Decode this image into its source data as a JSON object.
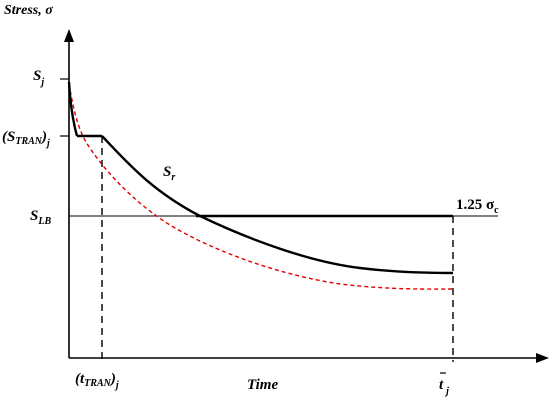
{
  "axes": {
    "y_title": "Stress, σ",
    "x_title": "Time"
  },
  "labels": {
    "sj_main": "S",
    "sj_sub": "j",
    "stran_open": "(S",
    "stran_sub": "TRAN",
    "stran_close": ")",
    "stran_sub2": "j",
    "slb_main": "S",
    "slb_sub": "LB",
    "sr_main": "S",
    "sr_sub": "r",
    "limit_value": "1.25 σ",
    "limit_sub": "c",
    "ttran_open": "(t",
    "ttran_sub": "TRAN",
    "ttran_close": ")",
    "ttran_sub2": "j",
    "tbar_main": "t",
    "tbar_sub": "j"
  },
  "colors": {
    "axis": "#000000",
    "curve": "#000000",
    "dashed_curve": "#e00000"
  }
}
